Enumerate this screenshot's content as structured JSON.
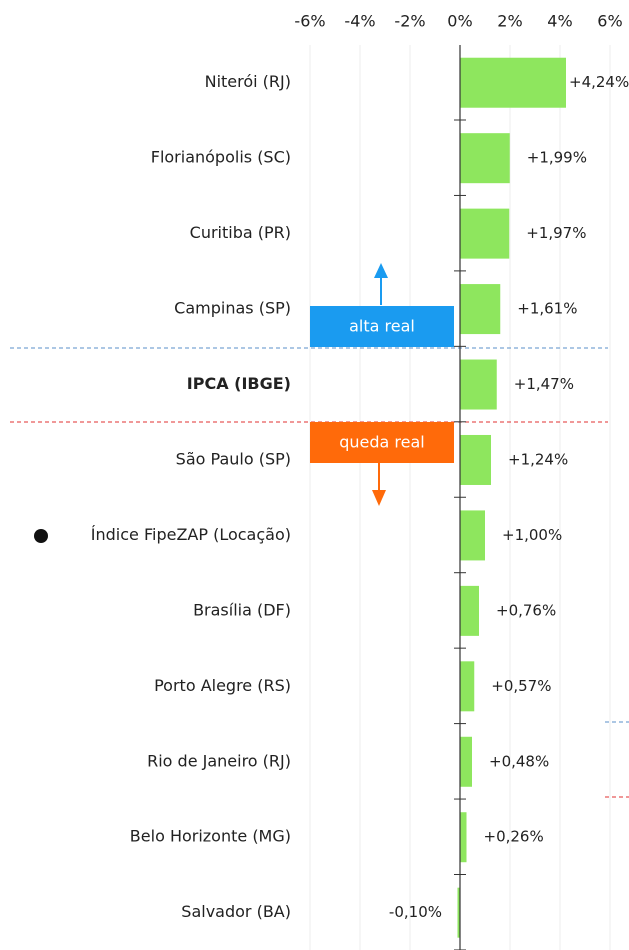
{
  "chart_data": {
    "type": "barh",
    "categories": [
      "Niterói (RJ)",
      "Florianópolis (SC)",
      "Curitiba (PR)",
      "Campinas (SP)",
      "IPCA (IBGE)",
      "São Paulo (SP)",
      "Índice FipeZAP (Locação)",
      "Brasília (DF)",
      "Porto Alegre (RS)",
      "Rio de Janeiro (RJ)",
      "Belo Horizonte (MG)",
      "Salvador (BA)"
    ],
    "values": [
      4.24,
      1.99,
      1.97,
      1.61,
      1.47,
      1.24,
      1.0,
      0.76,
      0.57,
      0.48,
      0.26,
      -0.1
    ],
    "value_labels": [
      "+4,24%",
      "+1,99%",
      "+1,97%",
      "+1,61%",
      "+1,47%",
      "+1,24%",
      "+1,00%",
      "+0,76%",
      "+0,57%",
      "+0,48%",
      "+0,26%",
      "-0,10%"
    ],
    "color": "#8ee65e",
    "xlim": [
      -18.4,
      6.76
    ],
    "xticks": [
      {
        "value": -6,
        "label": "-6%"
      },
      {
        "value": -4,
        "label": "-4%"
      },
      {
        "value": -2,
        "label": "-2%"
      },
      {
        "value": 0,
        "label": "0%"
      },
      {
        "value": 2,
        "label": "2%"
      },
      {
        "value": 4,
        "label": "4%"
      },
      {
        "value": 6,
        "label": "6%"
      }
    ],
    "grid": true,
    "annotations": [
      "alta real",
      "queda real"
    ]
  }
}
